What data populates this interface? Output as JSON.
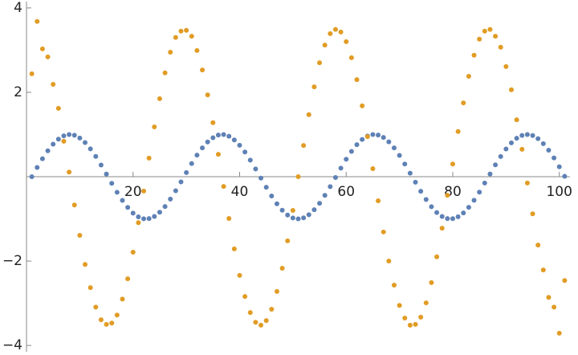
{
  "chart_data": {
    "type": "scatter",
    "x": [
      1,
      2,
      3,
      4,
      5,
      6,
      7,
      8,
      9,
      10,
      11,
      12,
      13,
      14,
      15,
      16,
      17,
      18,
      19,
      20,
      21,
      22,
      23,
      24,
      25,
      26,
      27,
      28,
      29,
      30,
      31,
      32,
      33,
      34,
      35,
      36,
      37,
      38,
      39,
      40,
      41,
      42,
      43,
      44,
      45,
      46,
      47,
      48,
      49,
      50,
      51,
      52,
      53,
      54,
      55,
      56,
      57,
      58,
      59,
      60,
      61,
      62,
      63,
      64,
      65,
      66,
      67,
      68,
      69,
      70,
      71,
      72,
      73,
      74,
      75,
      76,
      77,
      78,
      79,
      80,
      81,
      82,
      83,
      84,
      85,
      86,
      87,
      88,
      89,
      90,
      91,
      92,
      93,
      94,
      95,
      96,
      97,
      98,
      99,
      100,
      101
    ],
    "series": [
      {
        "color": "#5e81b5",
        "values": [
          0,
          0.218,
          0.426,
          0.613,
          0.771,
          0.891,
          0.969,
          1.0,
          0.982,
          0.917,
          0.808,
          0.66,
          0.48,
          0.277,
          0.062,
          -0.158,
          -0.37,
          -0.562,
          -0.729,
          -0.864,
          -0.952,
          -0.996,
          -0.992,
          -0.943,
          -0.842,
          -0.706,
          -0.53,
          -0.334,
          -0.123,
          0.097,
          0.312,
          0.511,
          0.684,
          0.824,
          0.924,
          0.988,
          0.999,
          0.959,
          0.872,
          0.745,
          0.585,
          0.393,
          0.183,
          -0.034,
          -0.251,
          -0.458,
          -0.642,
          -0.794,
          -0.91,
          -0.978,
          -1.0,
          -0.976,
          -0.902,
          -0.784,
          -0.63,
          -0.443,
          -0.236,
          -0.018,
          0.203,
          0.414,
          0.6,
          0.76,
          0.883,
          0.963,
          0.999,
          0.988,
          0.93,
          0.826,
          0.683,
          0.505,
          0.301,
          0.083,
          -0.131,
          -0.345,
          -0.541,
          -0.712,
          -0.849,
          -0.943,
          -0.992,
          -0.994,
          -0.95,
          -0.859,
          -0.726,
          -0.559,
          -0.367,
          -0.15,
          0.064,
          0.28,
          0.479,
          0.656,
          0.803,
          0.911,
          0.979,
          1.0,
          0.975,
          0.901,
          0.784,
          0.628,
          0.444,
          0.236,
          0.009
        ]
      },
      {
        "color": "#e19c24",
        "values": [
          2.44,
          3.68,
          3.03,
          2.84,
          2.19,
          1.62,
          0.84,
          0.11,
          -0.67,
          -1.39,
          -2.08,
          -2.63,
          -3.09,
          -3.39,
          -3.5,
          -3.47,
          -3.28,
          -2.9,
          -2.42,
          -1.79,
          -1.09,
          -0.34,
          0.44,
          1.18,
          1.85,
          2.46,
          2.95,
          3.3,
          3.45,
          3.47,
          3.33,
          2.99,
          2.53,
          1.94,
          1.28,
          0.53,
          -0.23,
          -0.99,
          -1.71,
          -2.34,
          -2.84,
          -3.22,
          -3.45,
          -3.52,
          -3.41,
          -3.14,
          -2.72,
          -2.17,
          -1.52,
          -0.8,
          0.0,
          0.74,
          1.47,
          2.13,
          2.7,
          3.12,
          3.39,
          3.49,
          3.43,
          3.2,
          2.82,
          2.3,
          1.68,
          0.95,
          0.19,
          -0.57,
          -1.31,
          -2.0,
          -2.57,
          -3.05,
          -3.35,
          -3.52,
          -3.5,
          -3.33,
          -2.99,
          -2.51,
          -1.9,
          -1.22,
          -0.44,
          0.3,
          1.07,
          1.75,
          2.38,
          2.88,
          3.26,
          3.45,
          3.49,
          3.33,
          3.07,
          2.61,
          2.06,
          1.35,
          0.65,
          -0.15,
          -0.88,
          -1.62,
          -2.21,
          -2.86,
          -3.09,
          -3.71,
          -2.46
        ]
      }
    ],
    "xlim": [
      0,
      102
    ],
    "ylim": [
      -4.15,
      4.15
    ],
    "xticks": [
      20,
      40,
      60,
      80,
      100
    ],
    "yticks": [
      {
        "value": -4,
        "label": "−4"
      },
      {
        "value": -2,
        "label": "−2"
      },
      2,
      4
    ]
  }
}
